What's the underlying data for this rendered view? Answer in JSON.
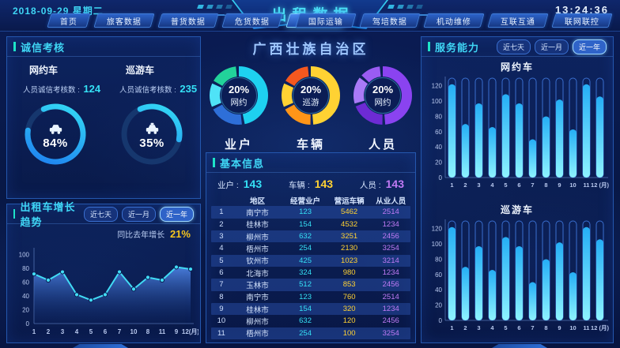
{
  "topbar": {
    "date": "2018-09-29 星期二",
    "time": "13:24:36",
    "title": "出租数据",
    "left_tabs": [
      {
        "label": "首页",
        "active": false
      },
      {
        "label": "旅客数据",
        "active": false
      },
      {
        "label": "普货数据",
        "active": false
      },
      {
        "label": "危货数据",
        "active": false
      },
      {
        "label": "出租数据",
        "active": true
      }
    ],
    "right_tabs": [
      {
        "label": "国际运输",
        "active": false
      },
      {
        "label": "驾培数据",
        "active": false
      },
      {
        "label": "机动维修",
        "active": false
      },
      {
        "label": "互联互通",
        "active": false
      },
      {
        "label": "联网联控",
        "active": false
      }
    ]
  },
  "integrity_panel": {
    "title": "诚信考核",
    "items": [
      {
        "name": "网约车",
        "metric_label": "人员诚信考核数",
        "metric_value": "124",
        "percent": 84,
        "icon": "online-car-icon"
      },
      {
        "name": "巡游车",
        "metric_label": "人员诚信考核数",
        "metric_value": "235",
        "percent": 35,
        "icon": "taxi-icon"
      }
    ],
    "gauge_colors": {
      "track": "#16376e",
      "arc_start": "#1d7bf0",
      "arc_end": "#35e0f5"
    }
  },
  "growth_panel": {
    "title": "出租车增长趋势",
    "range_buttons": [
      {
        "label": "近七天",
        "active": false
      },
      {
        "label": "近一月",
        "active": false
      },
      {
        "label": "近一年",
        "active": true
      }
    ],
    "yoy_label": "同比去年增长",
    "yoy_value": "21%",
    "chart_data": {
      "type": "area",
      "x_labels": [
        "1",
        "2",
        "3",
        "4",
        "5",
        "6",
        "7",
        "10",
        "8",
        "11",
        "9",
        "12(月)"
      ],
      "values": [
        72,
        63,
        75,
        42,
        34,
        42,
        75,
        50,
        67,
        63,
        82,
        79
      ],
      "y_ticks": [
        0,
        20,
        40,
        60,
        80,
        100
      ],
      "ylim": [
        0,
        110
      ],
      "line_color": "#41dcf5",
      "area_top": "#4f86e8",
      "area_bottom": "#0d2a6e"
    }
  },
  "center": {
    "region_title": "广西壮族自治区",
    "donuts": [
      {
        "label": "业户",
        "percent": "20%",
        "sub": "网约",
        "segments": [
          {
            "color": "#1ed1f0",
            "frac": 0.5
          },
          {
            "color": "#2e6fd8",
            "frac": 0.2
          },
          {
            "color": "#4fe3f7",
            "frac": 0.14
          },
          {
            "color": "#22d39a",
            "frac": 0.16
          }
        ]
      },
      {
        "label": "车辆",
        "percent": "20%",
        "sub": "巡游",
        "segments": [
          {
            "color": "#ffd233",
            "frac": 0.52
          },
          {
            "color": "#ff9518",
            "frac": 0.18
          },
          {
            "color": "#ffd233",
            "frac": 0.14
          },
          {
            "color": "#f4581f",
            "frac": 0.16
          }
        ]
      },
      {
        "label": "人员",
        "percent": "20%",
        "sub": "网约",
        "segments": [
          {
            "color": "#8a43f0",
            "frac": 0.52
          },
          {
            "color": "#6d2bd4",
            "frac": 0.2
          },
          {
            "color": "#a97af7",
            "frac": 0.16
          },
          {
            "color": "#9a5cf3",
            "frac": 0.12
          }
        ]
      }
    ],
    "info_panel": {
      "title": "基本信息",
      "stats": [
        {
          "label": "业户",
          "value": "143",
          "color": "#35e0f5"
        },
        {
          "label": "车辆",
          "value": "143",
          "color": "#ffd233"
        },
        {
          "label": "人员",
          "value": "143",
          "color": "#c07af5"
        }
      ],
      "table": {
        "headers": [
          "地区",
          "经营业户",
          "营运车辆",
          "从业人员"
        ],
        "value_colors": [
          "#35e0f5",
          "#ffd233",
          "#c07af5"
        ],
        "rows": [
          {
            "idx": "1",
            "city": "南宁市",
            "operators": "123",
            "vehicles": "5462",
            "staff": "2514"
          },
          {
            "idx": "2",
            "city": "桂林市",
            "operators": "154",
            "vehicles": "4532",
            "staff": "1234"
          },
          {
            "idx": "3",
            "city": "柳州市",
            "operators": "632",
            "vehicles": "3251",
            "staff": "2456"
          },
          {
            "idx": "4",
            "city": "梧州市",
            "operators": "254",
            "vehicles": "2130",
            "staff": "3254"
          },
          {
            "idx": "5",
            "city": "钦州市",
            "operators": "425",
            "vehicles": "1023",
            "staff": "3214"
          },
          {
            "idx": "6",
            "city": "北海市",
            "operators": "324",
            "vehicles": "980",
            "staff": "1234"
          },
          {
            "idx": "7",
            "city": "玉林市",
            "operators": "512",
            "vehicles": "853",
            "staff": "2456"
          },
          {
            "idx": "8",
            "city": "南宁市",
            "operators": "123",
            "vehicles": "760",
            "staff": "2514"
          },
          {
            "idx": "9",
            "city": "桂林市",
            "operators": "154",
            "vehicles": "320",
            "staff": "1234"
          },
          {
            "idx": "10",
            "city": "柳州市",
            "operators": "632",
            "vehicles": "120",
            "staff": "2456"
          },
          {
            "idx": "11",
            "city": "梧州市",
            "operators": "254",
            "vehicles": "100",
            "staff": "3254"
          }
        ]
      }
    }
  },
  "service_panel": {
    "title": "服务能力",
    "range_buttons": [
      {
        "label": "近七天",
        "active": false
      },
      {
        "label": "近一月",
        "active": false
      },
      {
        "label": "近一年",
        "active": true
      }
    ],
    "chart_data": [
      {
        "type": "bar",
        "title": "网约车",
        "x_labels": [
          "1",
          "2",
          "3",
          "4",
          "5",
          "6",
          "7",
          "8",
          "9",
          "10",
          "11",
          "12 (月)"
        ],
        "values": [
          122,
          70,
          97,
          66,
          109,
          97,
          50,
          80,
          102,
          63,
          122,
          106
        ],
        "y_ticks": [
          0,
          20,
          40,
          60,
          80,
          100,
          120
        ],
        "ylim": [
          0,
          130
        ],
        "bar_top": "#25aef5",
        "bar_bottom": "#8df3ff",
        "capsule_outline": "#3a6fd0"
      },
      {
        "type": "bar",
        "title": "巡游车",
        "x_labels": [
          "1",
          "2",
          "3",
          "4",
          "5",
          "6",
          "7",
          "8",
          "9",
          "10",
          "11",
          "12 (月)"
        ],
        "values": [
          122,
          70,
          97,
          66,
          109,
          97,
          50,
          80,
          102,
          63,
          122,
          106
        ],
        "y_ticks": [
          0,
          20,
          40,
          60,
          80,
          100,
          120
        ],
        "ylim": [
          0,
          130
        ],
        "bar_top": "#25aef5",
        "bar_bottom": "#8df3ff",
        "capsule_outline": "#3a6fd0"
      }
    ]
  }
}
